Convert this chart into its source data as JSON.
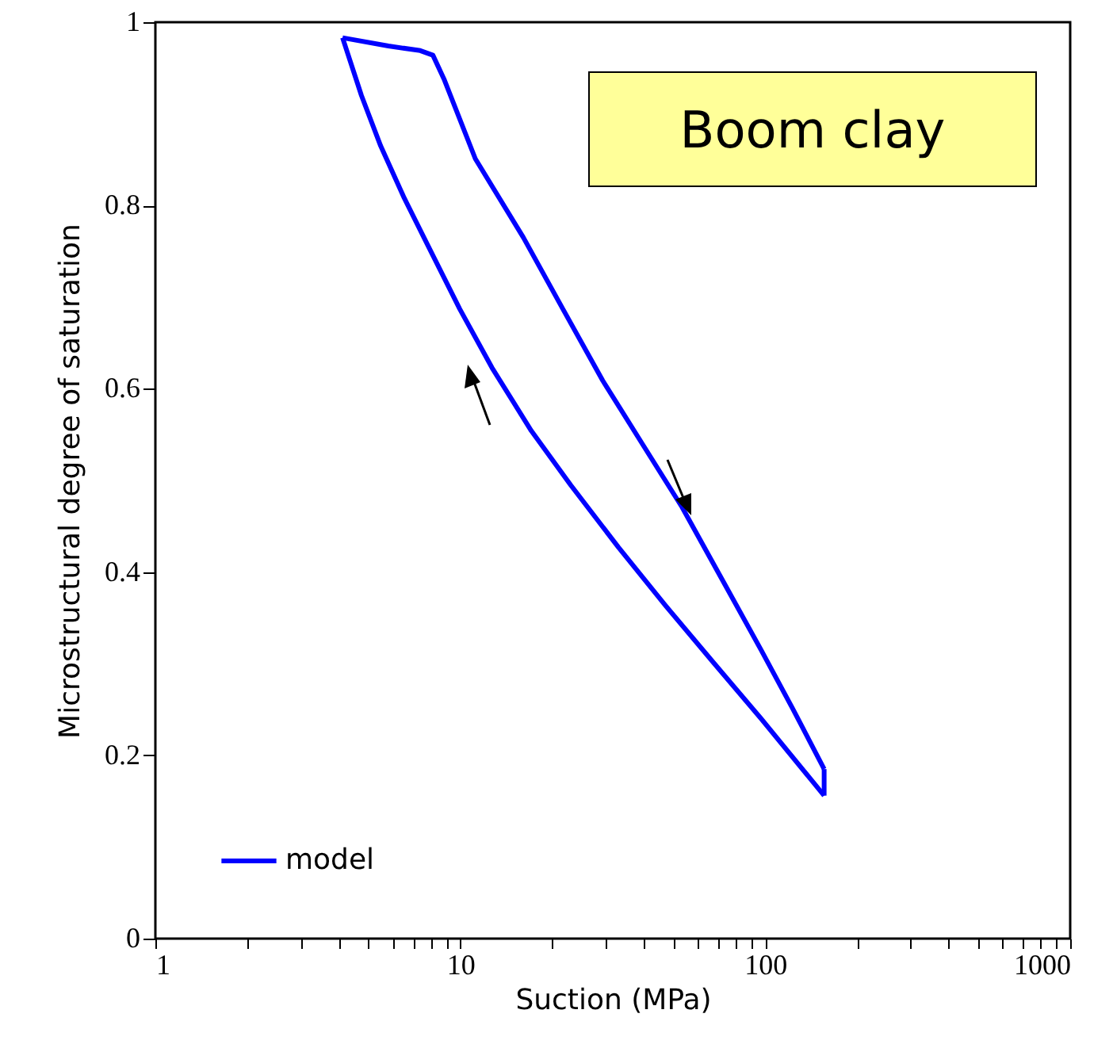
{
  "chart_data": {
    "type": "line",
    "xlabel": "Suction (MPa)",
    "ylabel": "Microstructural degree of saturation",
    "annotations": [
      "Boom clay"
    ],
    "log": "x",
    "xlim": [
      1,
      1000
    ],
    "ylim": [
      0,
      1
    ],
    "xticks": [
      1,
      {
        "value": 2,
        "label": null
      },
      {
        "value": 3,
        "label": null
      },
      {
        "value": 4,
        "label": null
      },
      {
        "value": 5,
        "label": null
      },
      {
        "value": 6,
        "label": null
      },
      {
        "value": 7,
        "label": null
      },
      {
        "value": 8,
        "label": null
      },
      {
        "value": 9,
        "label": null
      },
      10,
      {
        "value": 20,
        "label": null
      },
      {
        "value": 30,
        "label": null
      },
      {
        "value": 40,
        "label": null
      },
      {
        "value": 50,
        "label": null
      },
      {
        "value": 60,
        "label": null
      },
      {
        "value": 70,
        "label": null
      },
      {
        "value": 80,
        "label": null
      },
      {
        "value": 90,
        "label": null
      },
      100,
      {
        "value": 200,
        "label": null
      },
      {
        "value": 300,
        "label": null
      },
      {
        "value": 400,
        "label": null
      },
      {
        "value": 500,
        "label": null
      },
      {
        "value": 600,
        "label": null
      },
      {
        "value": 700,
        "label": null
      },
      {
        "value": 800,
        "label": null
      },
      {
        "value": 900,
        "label": null
      },
      1000
    ],
    "yticks": [
      0,
      0.2,
      0.4,
      0.6,
      0.8,
      1
    ],
    "legend": "bottom left",
    "line_style": "solid",
    "series": [
      {
        "name": "model",
        "color": "#0000ff",
        "x": [
          4.11,
          5.81,
          7.39,
          8.13,
          8.84,
          11.2,
          16.1,
          21.7,
          29.3,
          39.5,
          53.3,
          71.9,
          96.9,
          123,
          156
        ],
        "values": [
          0.983,
          0.974,
          0.969,
          0.964,
          0.938,
          0.851,
          0.765,
          0.687,
          0.609,
          0.54,
          0.471,
          0.393,
          0.315,
          0.251,
          0.185
        ]
      },
      {
        "color": "#0000ff",
        "x": [
          4.11,
          4.74,
          5.48,
          6.55,
          7.84,
          9.96,
          12.7,
          17.1,
          23.0,
          33.0,
          47.2,
          67.7,
          96.9,
          156
        ],
        "values": [
          0.983,
          0.92,
          0.865,
          0.808,
          0.756,
          0.687,
          0.623,
          0.554,
          0.495,
          0.427,
          0.363,
          0.301,
          0.24,
          0.156
        ]
      },
      {
        "color": "#0000ff",
        "x": [
          156,
          156
        ],
        "values": [
          0.156,
          0.185
        ]
      }
    ]
  }
}
